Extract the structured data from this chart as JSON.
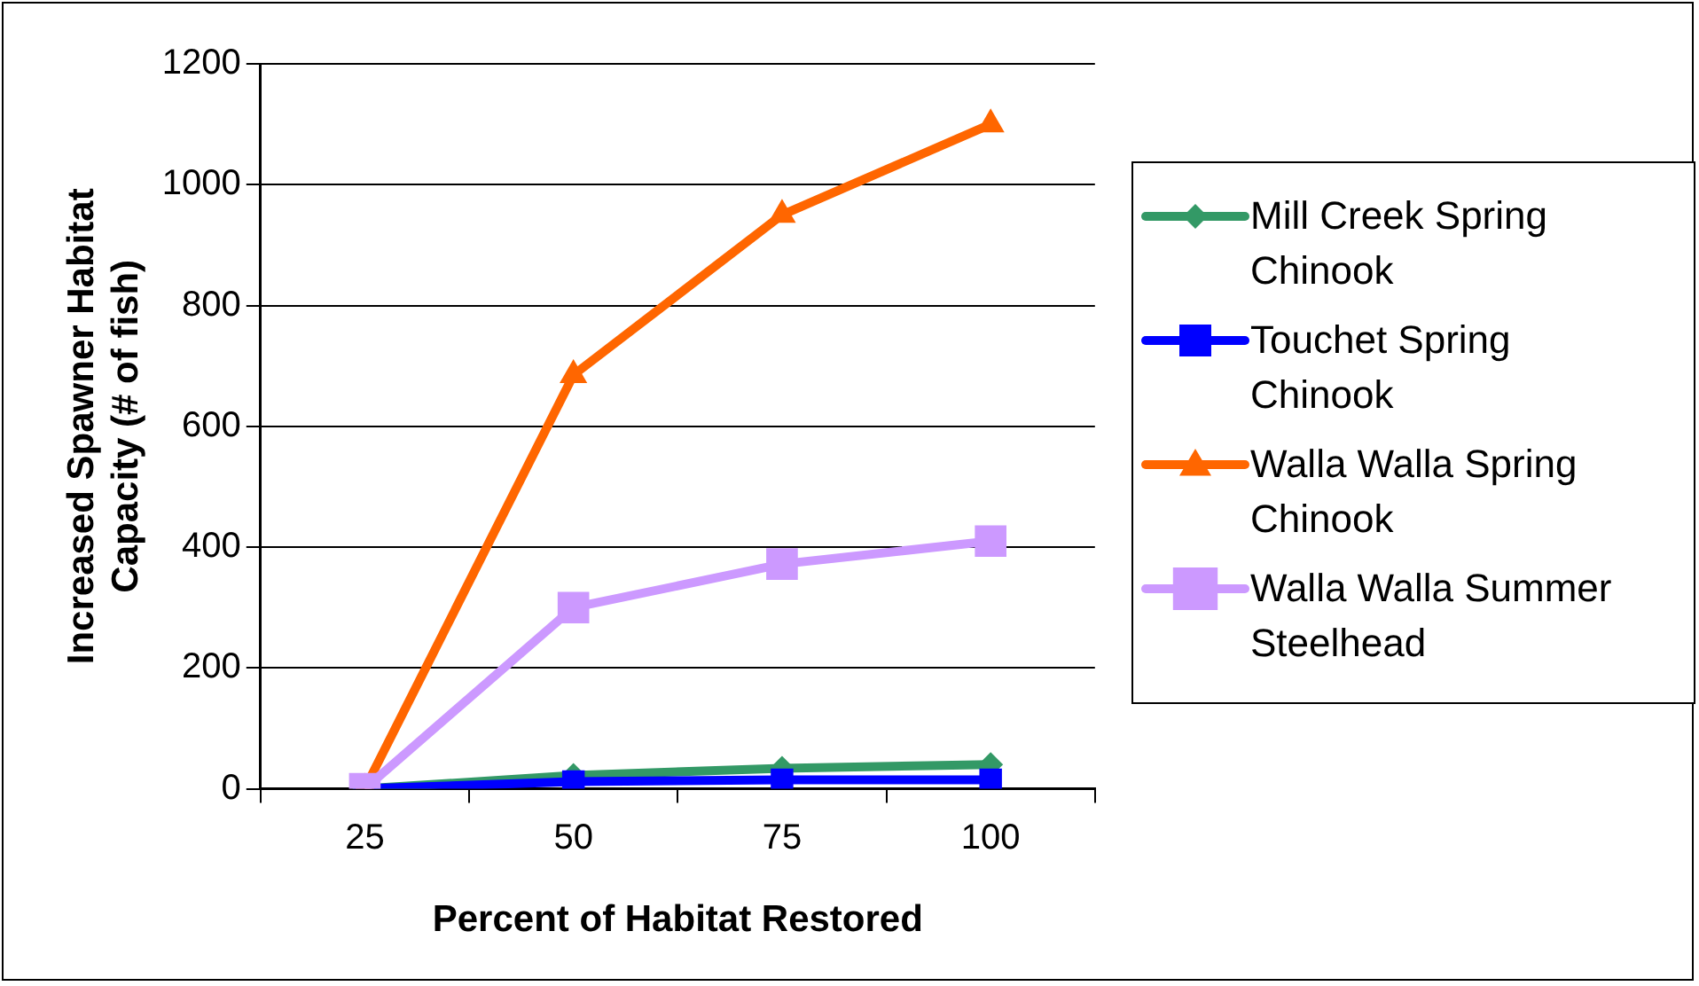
{
  "chart_data": {
    "type": "line",
    "xlabel": "Percent of Habitat Restored",
    "ylabel": "Increased Spawner Habitat Capacity (# of fish)",
    "categories": [
      "25",
      "50",
      "75",
      "100"
    ],
    "ylim": [
      0,
      1200
    ],
    "yticks": [
      0,
      200,
      400,
      600,
      800,
      1000,
      1200
    ],
    "grid": "y",
    "legend": "right",
    "series": [
      {
        "name": "Mill Creek Spring Chinook",
        "color": "#339966",
        "marker": "diamond",
        "values": [
          0,
          22,
          34,
          40
        ]
      },
      {
        "name": "Touchet Spring Chinook",
        "color": "#0000ff",
        "marker": "square",
        "values": [
          0,
          12,
          15,
          15
        ]
      },
      {
        "name": "Walla Walla Spring Chinook",
        "color": "#ff6600",
        "marker": "triangle",
        "values": [
          0,
          685,
          950,
          1100
        ]
      },
      {
        "name": "Walla Walla Summer Steelhead",
        "color": "#cc99ff",
        "marker": "square",
        "values": [
          0,
          300,
          372,
          410
        ]
      }
    ]
  }
}
